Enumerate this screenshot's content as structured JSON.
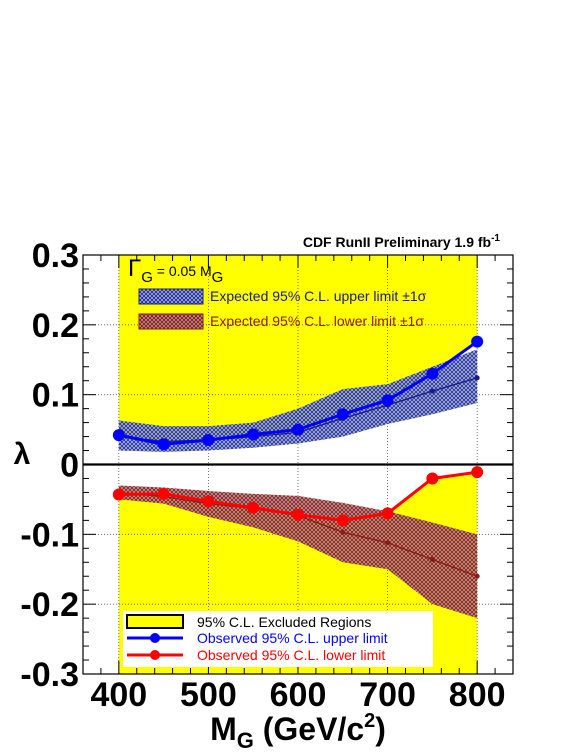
{
  "chart_data": {
    "type": "line",
    "title": "CDF RunII Preliminary 1.9 fb",
    "title_superscript": "-1",
    "annotation_main": "Γ",
    "annotation_sub1": "G",
    "annotation_mid": " = 0.05 M",
    "annotation_sub2": "G",
    "xlabel_main": "M",
    "xlabel_sub": "G",
    "xlabel_rest": " (GeV/c",
    "xlabel_sup": "2",
    "xlabel_close": ")",
    "ylabel": "λ",
    "xlim": [
      360,
      840
    ],
    "ylim": [
      -0.3,
      0.3
    ],
    "xticks": [
      400,
      500,
      600,
      700,
      800
    ],
    "xtick_labels": [
      "400",
      "500",
      "600",
      "700",
      "800"
    ],
    "yticks": [
      0.3,
      0.2,
      0.1,
      0,
      -0.1,
      -0.2,
      -0.3
    ],
    "ytick_labels": [
      "0.3",
      "0.2",
      "0.1",
      "0",
      "-0.1",
      "-0.2",
      "-0.3"
    ],
    "grid": true,
    "legend_placement": "top and bottom inside",
    "x": [
      400,
      450,
      500,
      550,
      600,
      650,
      700,
      750,
      800
    ],
    "series": [
      {
        "name": "Expected 95% C.L. upper limit ±1σ",
        "kind": "band",
        "color": "#1a1a8c",
        "median": [
          0.04,
          0.033,
          0.035,
          0.04,
          0.046,
          0.066,
          0.085,
          0.105,
          0.124
        ],
        "low": [
          0.02,
          0.018,
          0.02,
          0.024,
          0.03,
          0.04,
          0.058,
          0.072,
          0.088
        ],
        "high": [
          0.063,
          0.055,
          0.055,
          0.06,
          0.08,
          0.108,
          0.115,
          0.14,
          0.165
        ]
      },
      {
        "name": "Expected 95% C.L. lower limit ±1σ",
        "kind": "band",
        "color": "#8c1a1a",
        "median": [
          -0.04,
          -0.046,
          -0.056,
          -0.063,
          -0.073,
          -0.097,
          -0.112,
          -0.136,
          -0.16
        ],
        "low": [
          -0.05,
          -0.056,
          -0.075,
          -0.09,
          -0.11,
          -0.14,
          -0.15,
          -0.2,
          -0.22
        ],
        "high": [
          -0.03,
          -0.033,
          -0.038,
          -0.042,
          -0.045,
          -0.055,
          -0.067,
          -0.083,
          -0.1
        ]
      },
      {
        "name": "Observed 95% C.L. upper limit",
        "kind": "observed",
        "color": "#0000ff",
        "values": [
          0.042,
          0.029,
          0.035,
          0.043,
          0.05,
          0.072,
          0.092,
          0.13,
          0.176
        ]
      },
      {
        "name": "Observed 95% C.L. lower limit",
        "kind": "observed",
        "color": "#ff0000",
        "values": [
          -0.043,
          -0.042,
          -0.053,
          -0.062,
          -0.072,
          -0.08,
          -0.07,
          -0.02,
          -0.011
        ]
      }
    ],
    "excluded_region": {
      "name": "95% C.L. Excluded Regions",
      "color": "#ffff00"
    }
  }
}
